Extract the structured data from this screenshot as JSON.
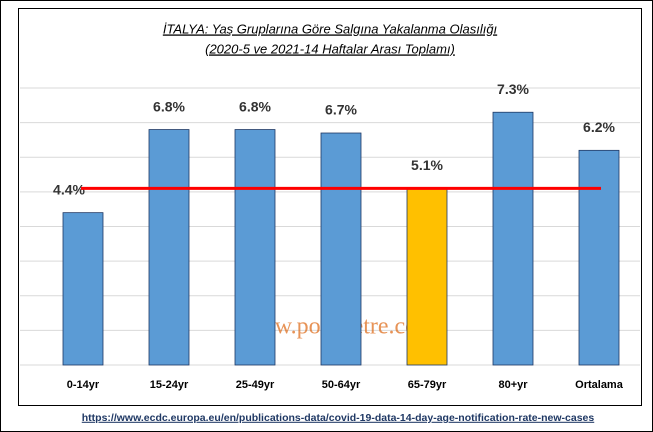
{
  "chart_data": {
    "type": "bar",
    "title": "İTALYA: Yaş Gruplarına Göre Salgına Yakalanma Olasılığı",
    "subtitle": "(2020-5 ve 2021-14 Haftalar Arası Toplamı)",
    "categories": [
      "0-14yr",
      "15-24yr",
      "25-49yr",
      "50-64yr",
      "65-79yr",
      "80+yr",
      "Ortalama"
    ],
    "values": [
      4.4,
      6.8,
      6.8,
      6.7,
      5.1,
      7.3,
      6.2
    ],
    "value_labels": [
      "4.4%",
      "6.8%",
      "6.8%",
      "6.7%",
      "5.1%",
      "7.3%",
      "6.2%"
    ],
    "colors": [
      "#5b9bd5",
      "#5b9bd5",
      "#5b9bd5",
      "#5b9bd5",
      "#ffc000",
      "#5b9bd5",
      "#5b9bd5"
    ],
    "ylim": [
      0,
      8
    ],
    "yticks": [
      0,
      1,
      2,
      3,
      4,
      5,
      6,
      7,
      8
    ],
    "grid": true,
    "reference_line": {
      "value": 5.1,
      "color": "#ff0000"
    },
    "watermark": "www.polimetre.com",
    "source": "https://www.ecdc.europa.eu/en/publications-data/covid-19-data-14-day-age-notification-rate-new-cases"
  }
}
